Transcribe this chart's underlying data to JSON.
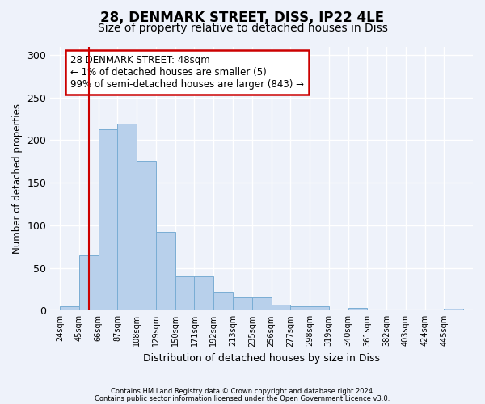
{
  "title_line1": "28, DENMARK STREET, DISS, IP22 4LE",
  "title_line2": "Size of property relative to detached houses in Diss",
  "xlabel": "Distribution of detached houses by size in Diss",
  "ylabel": "Number of detached properties",
  "bin_labels": [
    "24sqm",
    "45sqm",
    "66sqm",
    "87sqm",
    "108sqm",
    "129sqm",
    "150sqm",
    "171sqm",
    "192sqm",
    "213sqm",
    "235sqm",
    "256sqm",
    "277sqm",
    "298sqm",
    "319sqm",
    "340sqm",
    "361sqm",
    "382sqm",
    "403sqm",
    "424sqm",
    "445sqm"
  ],
  "bar_heights": [
    5,
    65,
    213,
    219,
    176,
    92,
    40,
    40,
    21,
    15,
    15,
    7,
    5,
    5,
    0,
    3,
    0,
    0,
    0,
    0,
    2
  ],
  "bar_color": "#b8d0eb",
  "bar_edge_color": "#7aadd4",
  "vline_x": 1.5,
  "vline_color": "#cc0000",
  "annotation_text": "28 DENMARK STREET: 48sqm\n← 1% of detached houses are smaller (5)\n99% of semi-detached houses are larger (843) →",
  "annotation_box_color": "white",
  "annotation_box_edge_color": "#cc0000",
  "ylim": [
    0,
    310
  ],
  "yticks": [
    0,
    50,
    100,
    150,
    200,
    250,
    300
  ],
  "bg_color": "#eef2fa",
  "footer_line1": "Contains HM Land Registry data © Crown copyright and database right 2024.",
  "footer_line2": "Contains public sector information licensed under the Open Government Licence v3.0.",
  "grid_color": "white",
  "title_fontsize1": 12,
  "title_fontsize2": 10
}
